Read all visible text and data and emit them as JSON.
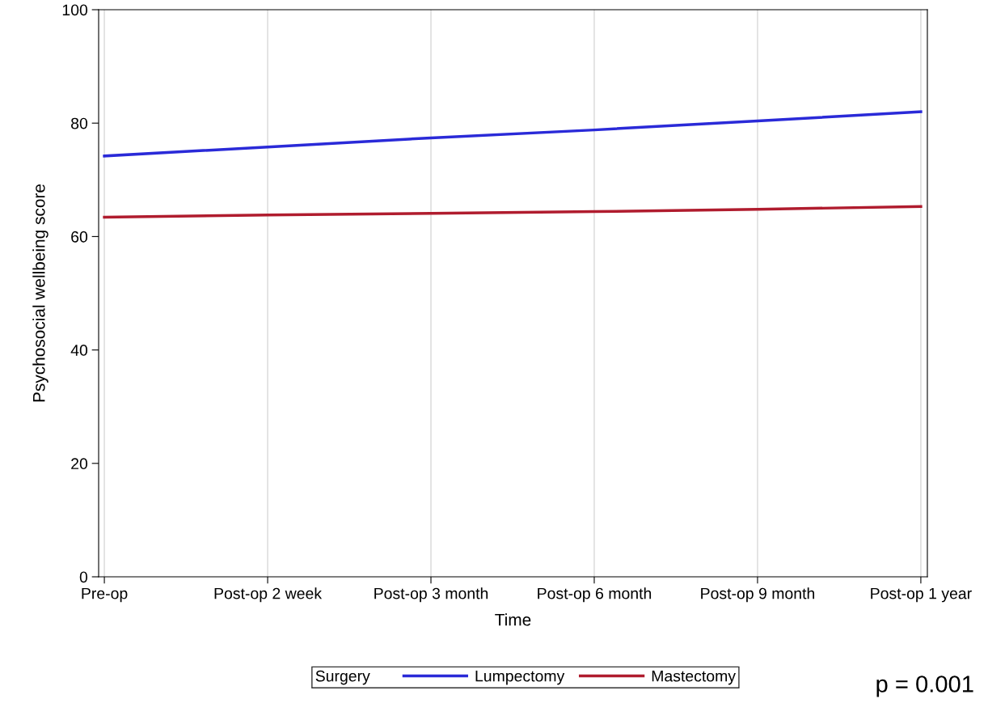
{
  "chart_data": {
    "type": "line",
    "xlabel": "Time",
    "ylabel": "Psychosocial wellbeing score",
    "categories": [
      "Pre-op",
      "Post-op 2 week",
      "Post-op 3 month",
      "Post-op 6 month",
      "Post-op 9 month",
      "Post-op 1 year"
    ],
    "series": [
      {
        "name": "Lumpectomy",
        "color": "#2a2ad8",
        "values": [
          74.2,
          75.8,
          77.4,
          78.8,
          80.4,
          82.0
        ]
      },
      {
        "name": "Mastectomy",
        "color": "#b01c2e",
        "values": [
          63.4,
          63.8,
          64.1,
          64.4,
          64.8,
          65.3
        ]
      }
    ],
    "ylim": [
      0,
      100
    ],
    "yticks": [
      0,
      20,
      40,
      60,
      80,
      100
    ],
    "grid": "x",
    "legend": "bottom",
    "legend_title": "Surgery",
    "marker": "none",
    "line_style": "solid",
    "annotations": [
      "p = 0.001"
    ]
  }
}
